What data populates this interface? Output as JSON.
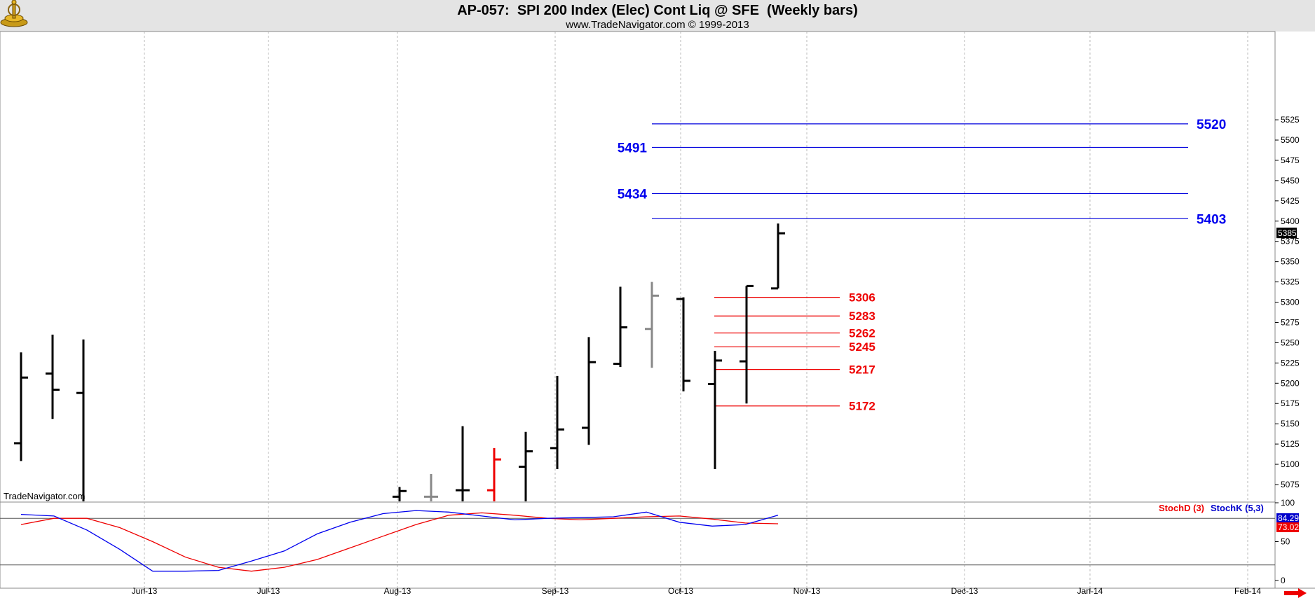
{
  "header": {
    "title": "AP-057:  SPI 200 Index (Elec) Cont Liq @ SFE  (Weekly bars)",
    "subtitle": "www.TradeNavigator.com © 1999-2013",
    "watermark": "TradeNavigator.com"
  },
  "chart_data": {
    "type": "ohlc",
    "title": "AP-057:  SPI 200 Index (Elec) Cont Liq @ SFE  (Weekly bars)",
    "ylim": [
      5050,
      5535
    ],
    "y_ticks": [
      5075,
      5100,
      5125,
      5150,
      5175,
      5200,
      5225,
      5250,
      5275,
      5300,
      5325,
      5350,
      5375,
      5400,
      5425,
      5450,
      5475,
      5500,
      5525
    ],
    "x_ticks": [
      "Jun-13",
      "Jul-13",
      "Aug-13",
      "Sep-13",
      "Oct-13",
      "Nov-13",
      "Dec-13",
      "Jan-14",
      "Feb-14"
    ],
    "last_price": "5385",
    "grid": "vertical dotted",
    "bars": [
      {
        "o": 5126,
        "h": 5238,
        "l": 5104,
        "c": 5207,
        "color": "#000000"
      },
      {
        "o": 5212,
        "h": 5260,
        "l": 5156,
        "c": 5192,
        "color": "#000000"
      },
      {
        "o": 5188,
        "h": 5254,
        "l": 5050,
        "c": 5050,
        "color": "#000000"
      },
      {
        "o": 5060,
        "h": 5072,
        "l": 5050,
        "c": 5067,
        "color": "#000000"
      },
      {
        "o": 5060,
        "h": 5088,
        "l": 5050,
        "c": 5060,
        "color": "#888888"
      },
      {
        "o": 5068,
        "h": 5147,
        "l": 5050,
        "c": 5068,
        "color": "#000000"
      },
      {
        "o": 5068,
        "h": 5120,
        "l": 5050,
        "c": 5106,
        "color": "#ee0000"
      },
      {
        "o": 5097,
        "h": 5140,
        "l": 5050,
        "c": 5116,
        "color": "#000000"
      },
      {
        "o": 5120,
        "h": 5209,
        "l": 5094,
        "c": 5143,
        "color": "#000000"
      },
      {
        "o": 5145,
        "h": 5257,
        "l": 5124,
        "c": 5226,
        "color": "#000000"
      },
      {
        "o": 5224,
        "h": 5319,
        "l": 5220,
        "c": 5269,
        "color": "#000000"
      },
      {
        "o": 5267,
        "h": 5325,
        "l": 5219,
        "c": 5308,
        "color": "#888888"
      },
      {
        "o": 5304,
        "h": 5306,
        "l": 5190,
        "c": 5203,
        "color": "#000000"
      },
      {
        "o": 5199,
        "h": 5240,
        "l": 5094,
        "c": 5228,
        "color": "#000000"
      },
      {
        "o": 5227,
        "h": 5320,
        "l": 5175,
        "c": 5320,
        "color": "#000000"
      },
      {
        "o": 5317,
        "h": 5397,
        "l": 5317,
        "c": 5385,
        "color": "#000000"
      }
    ],
    "levels_blue": [
      {
        "value": 5520,
        "label": "5520"
      },
      {
        "value": 5491,
        "label": "5491"
      },
      {
        "value": 5434,
        "label": "5434"
      },
      {
        "value": 5403,
        "label": "5403"
      }
    ],
    "levels_red": [
      {
        "value": 5306,
        "label": "5306"
      },
      {
        "value": 5283,
        "label": "5283"
      },
      {
        "value": 5262,
        "label": "5262"
      },
      {
        "value": 5245,
        "label": "5245"
      },
      {
        "value": 5217,
        "label": "5217"
      },
      {
        "value": 5172,
        "label": "5172"
      }
    ],
    "indicator": {
      "ylim": [
        0,
        100
      ],
      "y_ticks": [
        0,
        50,
        100
      ],
      "ref_lines": [
        80,
        20
      ],
      "legend_d": "StochD (3)",
      "legend_k": "StochK (5,3)",
      "last_k": "84.29",
      "last_d": "73.02",
      "stoch_k": [
        85,
        83,
        65,
        40,
        12,
        12,
        13,
        25,
        38,
        60,
        75,
        86,
        90,
        88,
        83,
        78,
        80,
        81,
        82,
        88,
        75,
        70,
        72,
        84
      ],
      "stoch_d": [
        72,
        80,
        80,
        68,
        50,
        30,
        17,
        12,
        17,
        27,
        42,
        57,
        72,
        84,
        87,
        84,
        80,
        78,
        80,
        82,
        83,
        79,
        74,
        73
      ]
    }
  }
}
